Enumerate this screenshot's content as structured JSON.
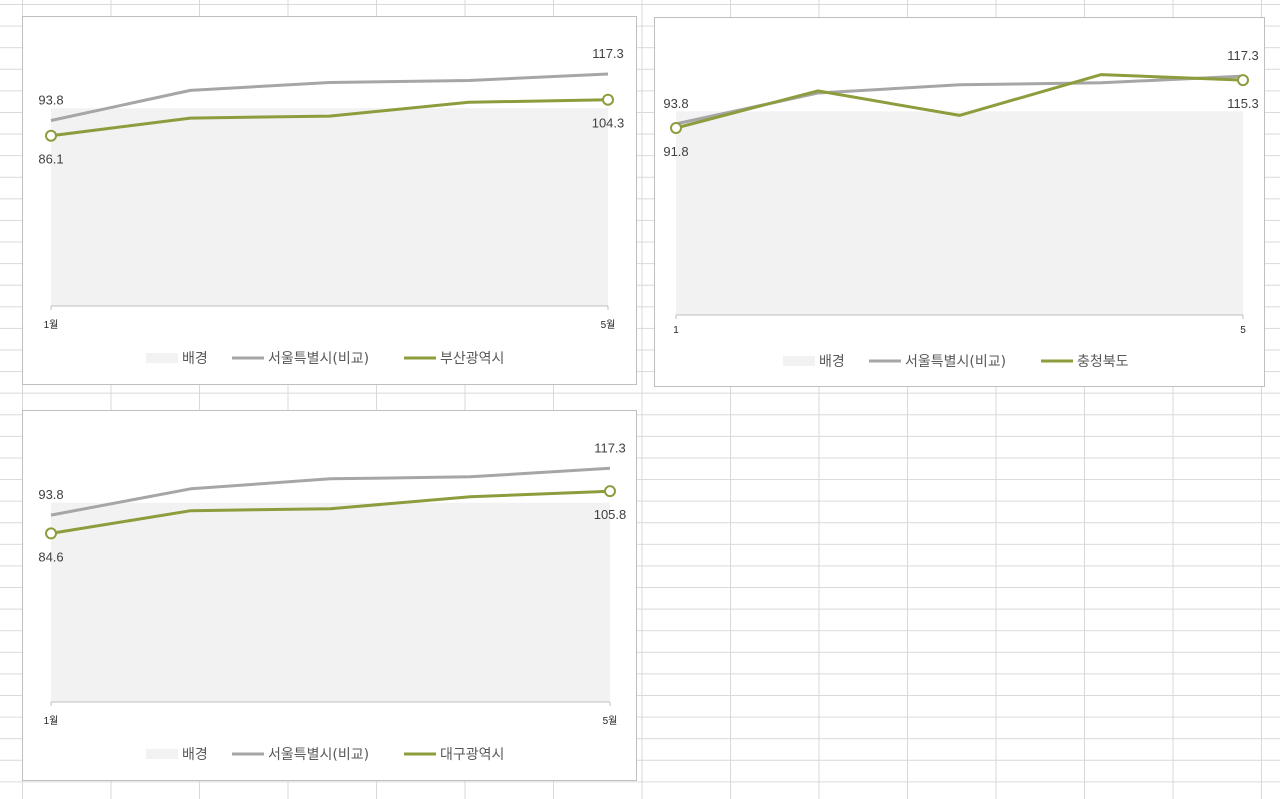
{
  "colors": {
    "background_fill": "#f2f2f2",
    "comparison_line": "#a6a6a6",
    "region_line": "#8c9d3d",
    "axis": "#bfbfbf"
  },
  "chart_data": [
    {
      "type": "line",
      "x_tick_labels": [
        "1월",
        "5월"
      ],
      "legend_position": "bottom",
      "series": [
        {
          "name": "배경",
          "kind": "area",
          "values": [
            100,
            100,
            100,
            100,
            100
          ]
        },
        {
          "name": "서울특별시(비교)",
          "kind": "line",
          "values": [
            93.8,
            109,
            113,
            114,
            117.3
          ]
        },
        {
          "name": "부산광역시",
          "kind": "line",
          "values": [
            86.1,
            95,
            96,
            103,
            104.3
          ]
        }
      ],
      "data_labels": {
        "comparison_start": "93.8",
        "comparison_end": "117.3",
        "region_start": "86.1",
        "region_end": "104.3"
      }
    },
    {
      "type": "line",
      "x_tick_labels": [
        "1",
        "5"
      ],
      "legend_position": "bottom",
      "series": [
        {
          "name": "배경",
          "kind": "area",
          "values": [
            100,
            100,
            100,
            100,
            100
          ]
        },
        {
          "name": "서울특별시(비교)",
          "kind": "line",
          "values": [
            93.8,
            109,
            113,
            114,
            117.3
          ]
        },
        {
          "name": "충청북도",
          "kind": "line",
          "values": [
            91.8,
            110,
            98,
            118,
            115.3
          ]
        }
      ],
      "data_labels": {
        "comparison_start": "93.8",
        "comparison_end": "117.3",
        "region_start": "91.8",
        "region_end": "115.3"
      }
    },
    {
      "type": "line",
      "x_tick_labels": [
        "1월",
        "5월"
      ],
      "legend_position": "bottom",
      "series": [
        {
          "name": "배경",
          "kind": "area",
          "values": [
            100,
            100,
            100,
            100,
            100
          ]
        },
        {
          "name": "서울특별시(비교)",
          "kind": "line",
          "values": [
            93.8,
            107,
            112,
            113,
            117.3
          ]
        },
        {
          "name": "대구광역시",
          "kind": "line",
          "values": [
            84.6,
            96,
            97,
            103,
            105.8
          ]
        }
      ],
      "data_labels": {
        "comparison_start": "93.8",
        "comparison_end": "117.3",
        "region_start": "84.6",
        "region_end": "105.8"
      }
    }
  ]
}
